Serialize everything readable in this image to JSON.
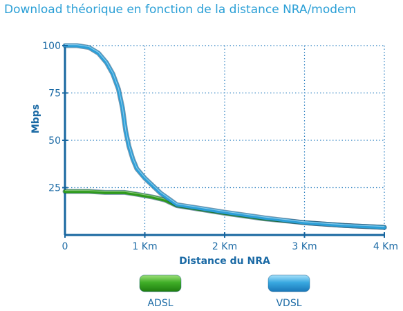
{
  "chart_data": {
    "type": "line",
    "title": "Download théorique en fonction de la distance NRA/modem",
    "xlabel": "Distance du NRA",
    "ylabel": "Mbps",
    "xlim": [
      0,
      4
    ],
    "ylim": [
      0,
      100
    ],
    "x_ticks": [
      {
        "value": 0,
        "label": "0"
      },
      {
        "value": 1,
        "label": "1 Km"
      },
      {
        "value": 2,
        "label": "2 Km"
      },
      {
        "value": 3,
        "label": "3 Km"
      },
      {
        "value": 4,
        "label": "4 Km"
      }
    ],
    "y_ticks": [
      {
        "value": 25,
        "label": "25"
      },
      {
        "value": 50,
        "label": "50"
      },
      {
        "value": 75,
        "label": "75"
      },
      {
        "value": 100,
        "label": "100"
      }
    ],
    "grid": true,
    "legend_position": "bottom",
    "series": [
      {
        "name": "ADSL",
        "color": "#2e9a1c",
        "x": [
          0,
          0.3,
          0.5,
          0.75,
          0.9,
          1.1,
          1.25,
          1.4,
          1.7,
          2.0,
          2.5,
          3.0,
          3.5,
          4.0
        ],
        "y": [
          23,
          23,
          22.5,
          22.5,
          21.5,
          20,
          18.5,
          15.5,
          13.5,
          11.5,
          8.5,
          6.5,
          5,
          4
        ]
      },
      {
        "name": "VDSL",
        "color": "#2c9fd8",
        "x": [
          0,
          0.15,
          0.3,
          0.42,
          0.52,
          0.6,
          0.67,
          0.72,
          0.76,
          0.8,
          0.85,
          0.9,
          1.0,
          1.1,
          1.2,
          1.3,
          1.4,
          1.7,
          2.0,
          2.5,
          3.0,
          3.5,
          4.0
        ],
        "y": [
          100,
          100,
          99,
          96,
          91,
          85,
          77,
          67,
          55,
          47,
          40,
          35,
          30,
          26,
          22,
          19,
          16,
          14,
          12,
          9,
          6.5,
          5,
          4
        ]
      }
    ]
  }
}
